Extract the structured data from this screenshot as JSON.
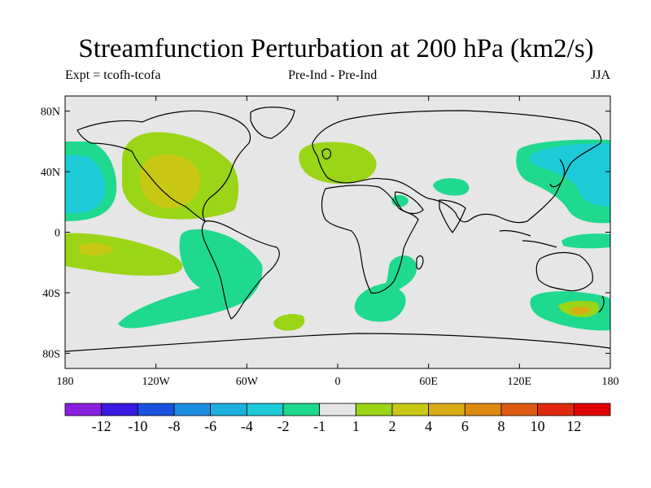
{
  "title": "Streamfunction Perturbation at 200 hPa (km2/s)",
  "subtitle_left": "Expt = tcofh-tcofa",
  "subtitle_center": "Pre-Ind - Pre-Ind",
  "subtitle_right": "JJA",
  "colors": {
    "background": "#e6e6e6",
    "neg2_to_neg1": "#1fd98e",
    "neg4_to_neg2": "#1ccad8",
    "pos1_to_2": "#9ad517",
    "pos2_to_4": "#c8c814",
    "pos4_to_6": "#d8ac14"
  },
  "chart_data": {
    "type": "map-contour",
    "projection": "cylindrical-equidistant",
    "x_range": [
      -180,
      180
    ],
    "y_range": [
      -90,
      90
    ],
    "x_ticks": [
      {
        "value": -180,
        "label": "180"
      },
      {
        "value": -120,
        "label": "120W"
      },
      {
        "value": -60,
        "label": "60W"
      },
      {
        "value": 0,
        "label": "0"
      },
      {
        "value": 60,
        "label": "60E"
      },
      {
        "value": 120,
        "label": "120E"
      },
      {
        "value": 180,
        "label": "180"
      }
    ],
    "y_ticks": [
      {
        "value": 80,
        "label": "80N"
      },
      {
        "value": 40,
        "label": "40N"
      },
      {
        "value": 0,
        "label": "0"
      },
      {
        "value": -40,
        "label": "40S"
      },
      {
        "value": -80,
        "label": "80S"
      }
    ],
    "colorbar": {
      "labels": [
        "-12",
        "-10",
        "-8",
        "-6",
        "-4",
        "-2",
        "-1",
        "1",
        "2",
        "4",
        "6",
        "8",
        "10",
        "12"
      ],
      "colors": [
        "#8a1fe0",
        "#3a19e0",
        "#1a52e0",
        "#1c8ee0",
        "#1cb0e0",
        "#1ccad8",
        "#1fd98e",
        "#e6e6e6",
        "#9ad517",
        "#c8c814",
        "#d8ac14",
        "#de8a12",
        "#de5a12",
        "#e02a10",
        "#e00000"
      ]
    }
  }
}
